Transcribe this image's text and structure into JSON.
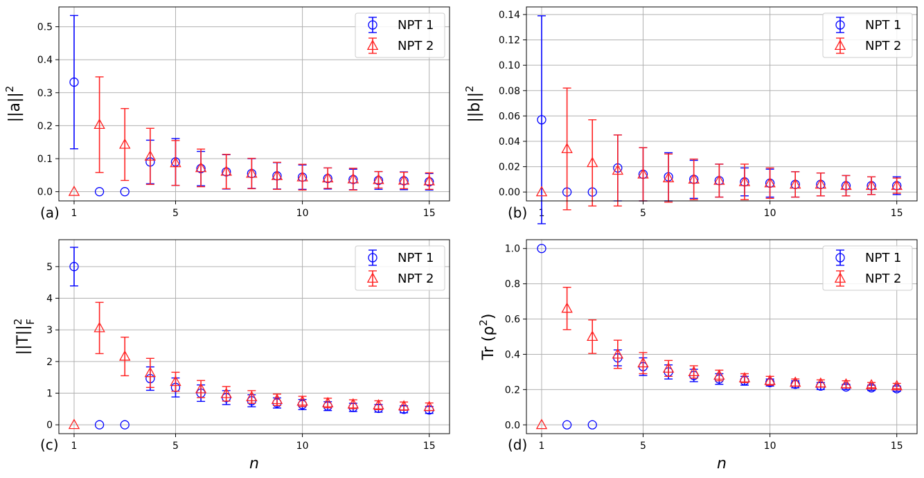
{
  "colors": {
    "series1": "#0000ff",
    "series2": "#ff2020",
    "grid": "#b0b0b0"
  },
  "chart_data": [
    {
      "type": "scatter",
      "panel_label": "(a)",
      "ylabel_main": "||a||",
      "ylabel_sup": "2",
      "ylabel_sub": "",
      "xlabel": "",
      "xlim": [
        0.4,
        15.8
      ],
      "ylim": [
        -0.028,
        0.56
      ],
      "xticks": [
        1,
        5,
        10,
        15
      ],
      "yticks": [
        0.0,
        0.1,
        0.2,
        0.3,
        0.4,
        0.5
      ],
      "ytick_labels": [
        "0.0",
        "0.1",
        "0.2",
        "0.3",
        "0.4",
        "0.5"
      ],
      "legend": [
        "NPT 1",
        "NPT 2"
      ],
      "legend_position": "top-right",
      "series": [
        {
          "name": "NPT 1",
          "marker": "circle",
          "x": [
            1,
            2,
            3,
            4,
            5,
            6,
            7,
            8,
            9,
            10,
            11,
            12,
            13,
            14,
            15
          ],
          "y": [
            0.332,
            0,
            0,
            0.09,
            0.09,
            0.07,
            0.06,
            0.055,
            0.048,
            0.044,
            0.04,
            0.037,
            0.034,
            0.033,
            0.03
          ],
          "err": [
            0.202,
            null,
            null,
            0.066,
            0.071,
            0.052,
            0.052,
            0.045,
            0.04,
            0.037,
            0.032,
            0.031,
            0.027,
            0.027,
            0.025
          ]
        },
        {
          "name": "NPT 2",
          "marker": "triangle",
          "x": [
            1,
            2,
            3,
            4,
            5,
            6,
            7,
            8,
            9,
            10,
            11,
            12,
            13,
            14,
            15
          ],
          "y": [
            0,
            0.203,
            0.143,
            0.107,
            0.087,
            0.072,
            0.061,
            0.055,
            0.048,
            0.044,
            0.041,
            0.038,
            0.036,
            0.034,
            0.032
          ],
          "err": [
            null,
            0.145,
            0.109,
            0.085,
            0.068,
            0.057,
            0.052,
            0.046,
            0.041,
            0.039,
            0.031,
            0.033,
            0.025,
            0.025,
            0.025
          ]
        }
      ]
    },
    {
      "type": "scatter",
      "panel_label": "(b)",
      "ylabel_main": "||b||",
      "ylabel_sup": "2",
      "ylabel_sub": "",
      "xlabel": "",
      "xlim": [
        0.4,
        15.8
      ],
      "ylim": [
        -0.007,
        0.146
      ],
      "xticks": [
        1,
        5,
        10,
        15
      ],
      "yticks": [
        0.0,
        0.02,
        0.04,
        0.06,
        0.08,
        0.1,
        0.12,
        0.14
      ],
      "ytick_labels": [
        "0.00",
        "0.02",
        "0.04",
        "0.06",
        "0.08",
        "0.10",
        "0.12",
        "0.14"
      ],
      "legend": [
        "NPT 1",
        "NPT 2"
      ],
      "legend_position": "top-right",
      "series": [
        {
          "name": "NPT 1",
          "marker": "circle",
          "x": [
            1,
            2,
            3,
            4,
            5,
            6,
            7,
            8,
            9,
            10,
            11,
            12,
            13,
            14,
            15
          ],
          "y": [
            0.057,
            0,
            0,
            0.019,
            0.014,
            0.012,
            0.01,
            0.009,
            0.008,
            0.007,
            0.006,
            0.006,
            0.005,
            0.005,
            0.005
          ],
          "err": [
            0.082,
            null,
            null,
            0.026,
            0.021,
            0.019,
            0.015,
            0.013,
            0.011,
            0.011,
            0.01,
            0.009,
            0.008,
            0.007,
            0.007
          ]
        },
        {
          "name": "NPT 2",
          "marker": "triangle",
          "x": [
            1,
            2,
            3,
            4,
            5,
            6,
            7,
            8,
            9,
            10,
            11,
            12,
            13,
            14,
            15
          ],
          "y": [
            0,
            0.034,
            0.023,
            0.017,
            0.014,
            0.011,
            0.01,
            0.009,
            0.008,
            0.007,
            0.006,
            0.006,
            0.005,
            0.005,
            0.005
          ],
          "err": [
            null,
            0.048,
            0.034,
            0.028,
            0.021,
            0.019,
            0.016,
            0.013,
            0.014,
            0.012,
            0.01,
            0.009,
            0.008,
            0.007,
            0.006
          ]
        }
      ]
    },
    {
      "type": "scatter",
      "panel_label": "(c)",
      "ylabel_main": "||T||",
      "ylabel_sup": "2",
      "ylabel_sub": "F",
      "xlabel": "n",
      "xlim": [
        0.4,
        15.8
      ],
      "ylim": [
        -0.28,
        5.85
      ],
      "xticks": [
        1,
        5,
        10,
        15
      ],
      "yticks": [
        0,
        1,
        2,
        3,
        4,
        5
      ],
      "ytick_labels": [
        "0",
        "1",
        "2",
        "3",
        "4",
        "5"
      ],
      "legend": [
        "NPT 1",
        "NPT 2"
      ],
      "legend_position": "top-right",
      "series": [
        {
          "name": "NPT 1",
          "marker": "circle",
          "x": [
            1,
            2,
            3,
            4,
            5,
            6,
            7,
            8,
            9,
            10,
            11,
            12,
            13,
            14,
            15
          ],
          "y": [
            5.0,
            0,
            0,
            1.46,
            1.18,
            1.0,
            0.86,
            0.76,
            0.69,
            0.64,
            0.59,
            0.55,
            0.52,
            0.49,
            0.47
          ],
          "err": [
            0.61,
            null,
            null,
            0.37,
            0.3,
            0.26,
            0.22,
            0.19,
            0.16,
            0.16,
            0.14,
            0.13,
            0.12,
            0.11,
            0.11
          ]
        },
        {
          "name": "NPT 2",
          "marker": "triangle",
          "x": [
            1,
            2,
            3,
            4,
            5,
            6,
            7,
            8,
            9,
            10,
            11,
            12,
            13,
            14,
            15
          ],
          "y": [
            0,
            3.06,
            2.16,
            1.64,
            1.36,
            1.13,
            0.98,
            0.88,
            0.79,
            0.74,
            0.69,
            0.65,
            0.62,
            0.59,
            0.57
          ],
          "err": [
            null,
            0.81,
            0.61,
            0.46,
            0.3,
            0.27,
            0.23,
            0.2,
            0.18,
            0.16,
            0.15,
            0.14,
            0.14,
            0.13,
            0.12
          ]
        }
      ]
    },
    {
      "type": "scatter",
      "panel_label": "(d)",
      "ylabel_main": "Tr (ρ",
      "ylabel_sup": "2",
      "ylabel_sub": "",
      "ylabel_after": ")",
      "xlabel": "n",
      "xlim": [
        0.4,
        15.8
      ],
      "ylim": [
        -0.05,
        1.05
      ],
      "xticks": [
        1,
        5,
        10,
        15
      ],
      "yticks": [
        0.0,
        0.2,
        0.4,
        0.6,
        0.8,
        1.0
      ],
      "ytick_labels": [
        "0.0",
        "0.2",
        "0.4",
        "0.6",
        "0.8",
        "1.0"
      ],
      "legend": [
        "NPT 1",
        "NPT 2"
      ],
      "legend_position": "top-right",
      "series": [
        {
          "name": "NPT 1",
          "marker": "circle",
          "x": [
            1,
            2,
            3,
            4,
            5,
            6,
            7,
            8,
            9,
            10,
            11,
            12,
            13,
            14,
            15
          ],
          "y": [
            1.0,
            0,
            0,
            0.38,
            0.33,
            0.3,
            0.28,
            0.26,
            0.25,
            0.24,
            0.23,
            0.22,
            0.215,
            0.21,
            0.205
          ],
          "err": [
            null,
            null,
            null,
            0.045,
            0.05,
            0.04,
            0.035,
            0.03,
            0.025,
            0.02,
            0.02,
            0.02,
            0.015,
            0.015,
            0.015
          ]
        },
        {
          "name": "NPT 2",
          "marker": "triangle",
          "x": [
            1,
            2,
            3,
            4,
            5,
            6,
            7,
            8,
            9,
            10,
            11,
            12,
            13,
            14,
            15
          ],
          "y": [
            0,
            0.66,
            0.5,
            0.4,
            0.35,
            0.32,
            0.3,
            0.28,
            0.265,
            0.25,
            0.24,
            0.235,
            0.23,
            0.225,
            0.22
          ],
          "err": [
            null,
            0.12,
            0.095,
            0.08,
            0.06,
            0.045,
            0.035,
            0.03,
            0.025,
            0.025,
            0.02,
            0.02,
            0.02,
            0.015,
            0.015
          ]
        }
      ]
    }
  ]
}
